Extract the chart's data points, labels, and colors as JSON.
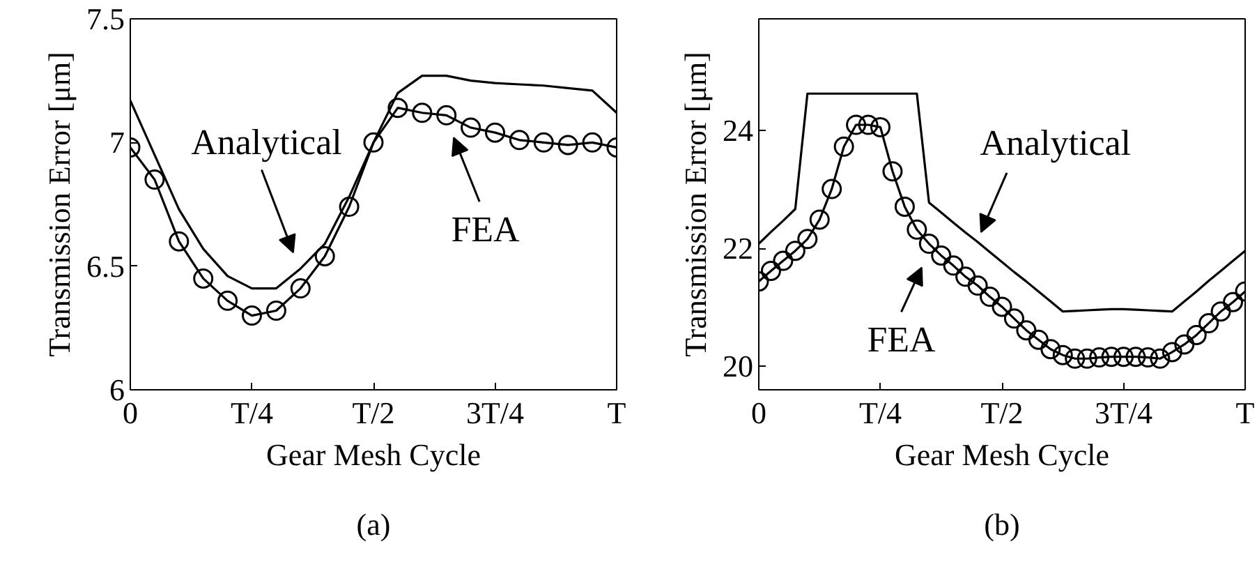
{
  "chart_data": [
    {
      "type": "line",
      "xlabel": "Gear Mesh Cycle",
      "ylabel": "Transmission Error [μm]",
      "ylim": [
        6,
        7.5
      ],
      "categories": [
        "0",
        null,
        null,
        null,
        null,
        "T/4",
        null,
        null,
        null,
        null,
        "T/2",
        null,
        null,
        null,
        null,
        "3T/4",
        null,
        null,
        null,
        null,
        "T"
      ],
      "yticks": [
        6,
        6.5,
        7,
        7.5
      ],
      "grid": false,
      "series": [
        {
          "color": "#000000",
          "marker": "circle",
          "values": [
            6.98,
            6.85,
            6.6,
            6.45,
            6.36,
            6.3,
            6.32,
            6.41,
            6.54,
            6.74,
            7.0,
            7.14,
            7.12,
            7.11,
            7.06,
            7.04,
            7.01,
            7.0,
            6.99,
            7.0,
            6.98
          ]
        },
        {
          "color": "#000000",
          "values": [
            7.17,
            6.95,
            6.73,
            6.57,
            6.46,
            6.41,
            6.41,
            6.49,
            6.59,
            6.78,
            7.0,
            7.2,
            7.27,
            7.27,
            7.25,
            7.24,
            7.235,
            7.23,
            7.22,
            7.21,
            7.12
          ]
        }
      ],
      "annotations": [
        "Analytical",
        {
          "text": "FEA",
          "y": 7.02
        },
        "(a)"
      ]
    },
    {
      "type": "line",
      "xlabel": "Gear Mesh Cycle",
      "ylabel": "Transmission Error [μm]",
      "ylim": [
        19.6,
        25.9
      ],
      "categories": [
        "0",
        null,
        null,
        null,
        null,
        null,
        null,
        null,
        null,
        null,
        "T/4",
        null,
        null,
        null,
        null,
        null,
        null,
        null,
        null,
        null,
        "T/2",
        null,
        null,
        null,
        null,
        null,
        null,
        null,
        null,
        null,
        "3T/4",
        null,
        null,
        null,
        null,
        null,
        null,
        null,
        null,
        null,
        "T"
      ],
      "yticks": [
        20,
        22,
        24
      ],
      "grid": false,
      "series": [
        {
          "color": "#000000",
          "marker": "circle",
          "values": [
            21.44,
            21.62,
            21.79,
            21.96,
            22.16,
            22.49,
            23.01,
            23.73,
            24.1,
            24.1,
            24.06,
            23.31,
            22.71,
            22.32,
            22.08,
            21.88,
            21.71,
            21.52,
            21.37,
            21.18,
            21.01,
            20.81,
            20.61,
            20.45,
            20.29,
            20.19,
            20.13,
            20.13,
            20.15,
            20.16,
            20.16,
            20.16,
            20.15,
            20.13,
            20.24,
            20.37,
            20.53,
            20.73,
            20.93,
            21.09,
            21.27
          ]
        },
        {
          "color": "#000000",
          "values": [
            22.08,
            22.28,
            22.47,
            22.67,
            24.63,
            24.63,
            24.63,
            24.63,
            24.63,
            24.63,
            24.63,
            24.63,
            24.63,
            24.63,
            22.78,
            22.61,
            22.44,
            22.27,
            22.11,
            21.94,
            21.77,
            21.6,
            21.44,
            21.27,
            21.1,
            20.93,
            20.94,
            20.95,
            20.96,
            20.97,
            20.97,
            20.96,
            20.95,
            20.94,
            20.93,
            21.1,
            21.27,
            21.45,
            21.62,
            21.79,
            21.96
          ]
        }
      ],
      "annotations": [
        "Analytical",
        "FEA",
        "(b)"
      ]
    }
  ]
}
